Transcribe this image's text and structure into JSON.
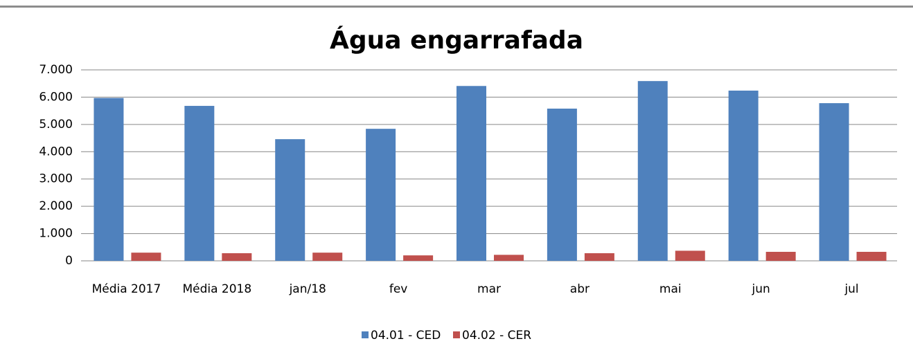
{
  "chart_data": {
    "type": "bar",
    "title": "Água engarrafada",
    "categories": [
      "Média 2017",
      "Média 2018",
      "jan/18",
      "fev",
      "mar",
      "abr",
      "mai",
      "jun",
      "jul"
    ],
    "series": [
      {
        "name": "04.01 - CED",
        "color": "#4f81bd",
        "values": [
          5970,
          5680,
          4460,
          4840,
          6410,
          5580,
          6590,
          6240,
          5780
        ]
      },
      {
        "name": "04.02 - CER",
        "color": "#c0504d",
        "values": [
          300,
          280,
          300,
          200,
          220,
          280,
          370,
          330,
          330
        ]
      }
    ],
    "ylim": [
      0,
      7000
    ],
    "yticks": [
      0,
      {
        "value": 1000,
        "label": "1.000"
      },
      {
        "value": 2000,
        "label": "2.000"
      },
      {
        "value": 3000,
        "label": "3.000"
      },
      {
        "value": 4000,
        "label": "4.000"
      },
      {
        "value": 5000,
        "label": "5.000"
      },
      {
        "value": 6000,
        "label": "6.000"
      },
      {
        "value": 7000,
        "label": "7.000"
      }
    ],
    "grid": true,
    "legend": "bottom"
  }
}
